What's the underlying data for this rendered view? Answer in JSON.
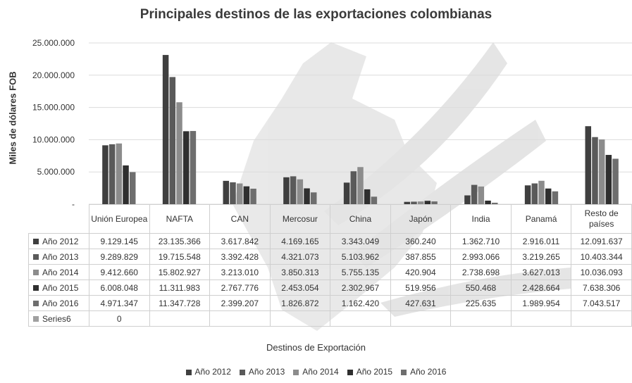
{
  "chart_data": {
    "type": "bar",
    "title": "Principales destinos de las exportaciones colombianas",
    "ylabel": "Miles de dólares FOB",
    "xlabel": "Destinos de Exportación",
    "ylim": [
      0,
      25000000
    ],
    "yticks": [
      0,
      5000000,
      10000000,
      15000000,
      20000000,
      25000000
    ],
    "ytick_labels": [
      "-",
      "5.000.000",
      "10.000.000",
      "15.000.000",
      "20.000.000",
      "25.000.000"
    ],
    "grid": true,
    "legend_position": "bottom",
    "categories": [
      "Unión Europea",
      "NAFTA",
      "CAN",
      "Mercosur",
      "China",
      "Japón",
      "India",
      "Panamá",
      "Resto de países"
    ],
    "series": [
      {
        "name": "Año 2012",
        "color": "#3f3f3f",
        "values": [
          9129145,
          23135366,
          3617842,
          4169165,
          3343049,
          360240,
          1362710,
          2916011,
          12091637
        ],
        "labels": [
          "9.129.145",
          "23.135.366",
          "3.617.842",
          "4.169.165",
          "3.343.049",
          "360.240",
          "1.362.710",
          "2.916.011",
          "12.091.637"
        ]
      },
      {
        "name": "Año 2013",
        "color": "#5a5a5a",
        "values": [
          9289829,
          19715548,
          3392428,
          4321073,
          5103962,
          387855,
          2993066,
          3219265,
          10403344
        ],
        "labels": [
          "9.289.829",
          "19.715.548",
          "3.392.428",
          "4.321.073",
          "5.103.962",
          "387.855",
          "2.993.066",
          "3.219.265",
          "10.403.344"
        ]
      },
      {
        "name": "Año 2014",
        "color": "#8c8c8c",
        "values": [
          9412660,
          15802927,
          3213010,
          3850313,
          5755135,
          420904,
          2738698,
          3627013,
          10036093
        ],
        "labels": [
          "9.412.660",
          "15.802.927",
          "3.213.010",
          "3.850.313",
          "5.755.135",
          "420.904",
          "2.738.698",
          "3.627.013",
          "10.036.093"
        ]
      },
      {
        "name": "Año 2015",
        "color": "#2f2f2f",
        "values": [
          6008048,
          11311983,
          2767776,
          2453054,
          2302967,
          519956,
          550468,
          2428664,
          7638306
        ],
        "labels": [
          "6.008.048",
          "11.311.983",
          "2.767.776",
          "2.453.054",
          "2.302.967",
          "519.956",
          "550.468",
          "2.428.664",
          "7.638.306"
        ]
      },
      {
        "name": "Año 2016",
        "color": "#6e6e6e",
        "values": [
          4971347,
          11347728,
          2399207,
          1826872,
          1162420,
          427631,
          225635,
          1989954,
          7043517
        ],
        "labels": [
          "4.971.347",
          "11.347.728",
          "2.399.207",
          "1.826.872",
          "1.162.420",
          "427.631",
          "225.635",
          "1.989.954",
          "7.043.517"
        ]
      },
      {
        "name": "Series6",
        "color": "#a0a0a0",
        "values": [
          0,
          null,
          null,
          null,
          null,
          null,
          null,
          null,
          null
        ],
        "labels": [
          "0",
          "",
          "",
          "",
          "",
          "",
          "",
          "",
          ""
        ]
      }
    ],
    "legend": [
      "Año 2012",
      "Año 2013",
      "Año 2014",
      "Año 2015",
      "Año 2016"
    ]
  }
}
